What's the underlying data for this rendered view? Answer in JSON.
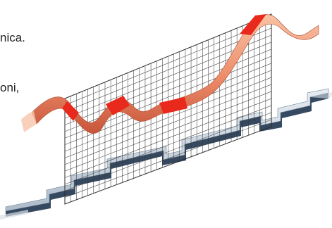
{
  "caption": {
    "line_1": "nica.",
    "line_2": "oni,"
  },
  "colors": {
    "analog_ribbon_light": "#f4a584",
    "analog_ribbon_dark": "#c8553a",
    "sampled_highlight": "#e8291c",
    "sampling_grid": "#3a3a3a",
    "digital_ribbon_face": "#c7d2de",
    "digital_ribbon_side": "#1f3550",
    "background": "#ffffff"
  }
}
